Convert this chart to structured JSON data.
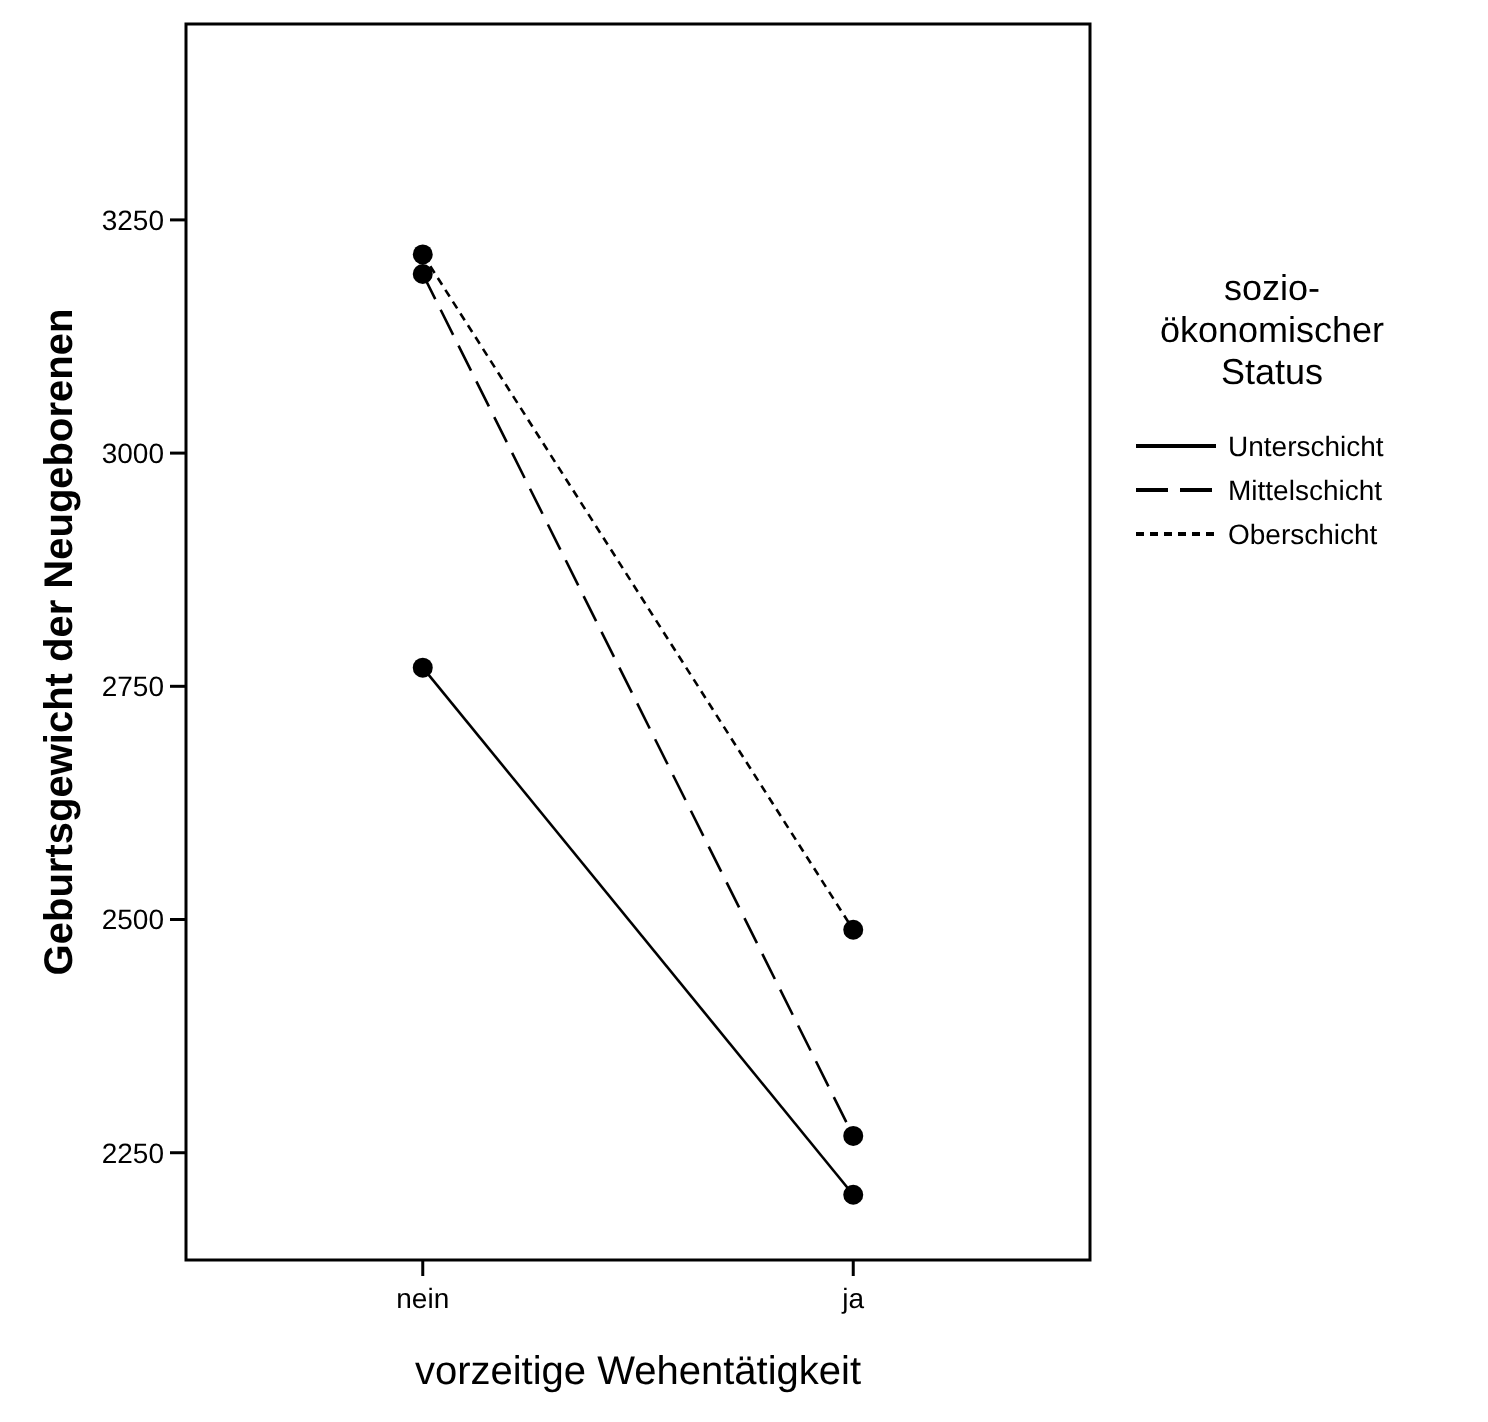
{
  "chart_data": {
    "type": "line",
    "xlabel": "vorzeitige Wehentätigkeit",
    "ylabel": "Geburtsgewicht der Neugeborenen",
    "legend_title": "sozio-\nökonomischer\nStatus",
    "categories": [
      "nein",
      "ja"
    ],
    "series": [
      {
        "name": "Unterschicht",
        "color": "#000000",
        "values": [
          2770,
          2205
        ],
        "line_style": "solid"
      },
      {
        "name": "Mittelschicht",
        "color": "#000000",
        "values": [
          3192,
          2268
        ],
        "line_style": "dashed"
      },
      {
        "name": "Oberschicht",
        "color": "#000000",
        "values": [
          3213,
          2489
        ],
        "line_style": "dotted"
      }
    ],
    "ylim": [
      2135,
      3460
    ],
    "yticks": [
      2250,
      2500,
      2750,
      3000,
      3250
    ],
    "grid": false,
    "legend": "right",
    "marker": "circle"
  }
}
